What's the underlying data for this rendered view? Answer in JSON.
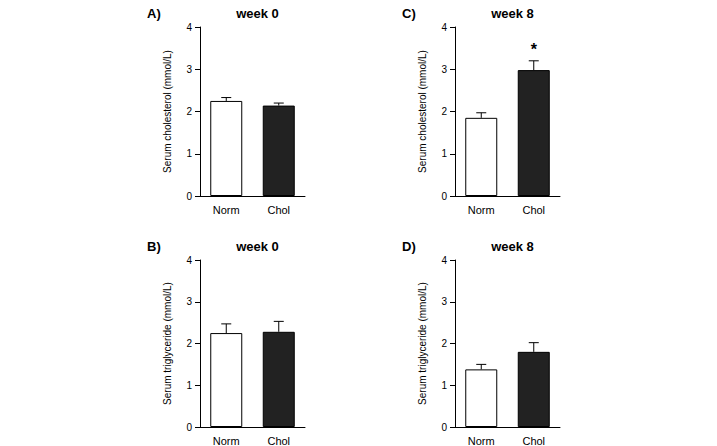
{
  "chart_data": [
    {
      "type": "bar",
      "panel": "A)",
      "title": "week 0",
      "y_label": "Serum cholesterol (mmol/L)",
      "categories": [
        "Norm",
        "Chol"
      ],
      "values": [
        2.25,
        2.14
      ],
      "errors": [
        0.08,
        0.06
      ],
      "colors": [
        "#ffffff",
        "#222222"
      ],
      "ylim": [
        0,
        4
      ],
      "yticks": [
        0,
        1,
        2,
        3,
        4
      ],
      "grid": false
    },
    {
      "type": "bar",
      "panel": "B)",
      "title": "week 0",
      "y_label": "Serum triglyceride (mmol/L)",
      "categories": [
        "Norm",
        "Chol"
      ],
      "values": [
        2.25,
        2.28
      ],
      "errors": [
        0.22,
        0.25
      ],
      "colors": [
        "#ffffff",
        "#222222"
      ],
      "ylim": [
        0,
        4
      ],
      "yticks": [
        0,
        1,
        2,
        3,
        4
      ],
      "grid": false
    },
    {
      "type": "bar",
      "panel": "C)",
      "title": "week 8",
      "y_label": "Serum cholesterol (mmol/L)",
      "categories": [
        "Norm",
        "Chol"
      ],
      "values": [
        1.85,
        2.98
      ],
      "errors": [
        0.12,
        0.22
      ],
      "colors": [
        "#ffffff",
        "#222222"
      ],
      "ylim": [
        0,
        4
      ],
      "yticks": [
        0,
        1,
        2,
        3,
        4
      ],
      "grid": false,
      "annotations": [
        {
          "category": "Chol",
          "text": "*"
        }
      ]
    },
    {
      "type": "bar",
      "panel": "D)",
      "title": "week 8",
      "y_label": "Serum triglyceride (mmol/L)",
      "categories": [
        "Norm",
        "Chol"
      ],
      "values": [
        1.38,
        1.8
      ],
      "errors": [
        0.12,
        0.22
      ],
      "colors": [
        "#ffffff",
        "#222222"
      ],
      "ylim": [
        0,
        4
      ],
      "yticks": [
        0,
        1,
        2,
        3,
        4
      ],
      "grid": false
    }
  ]
}
